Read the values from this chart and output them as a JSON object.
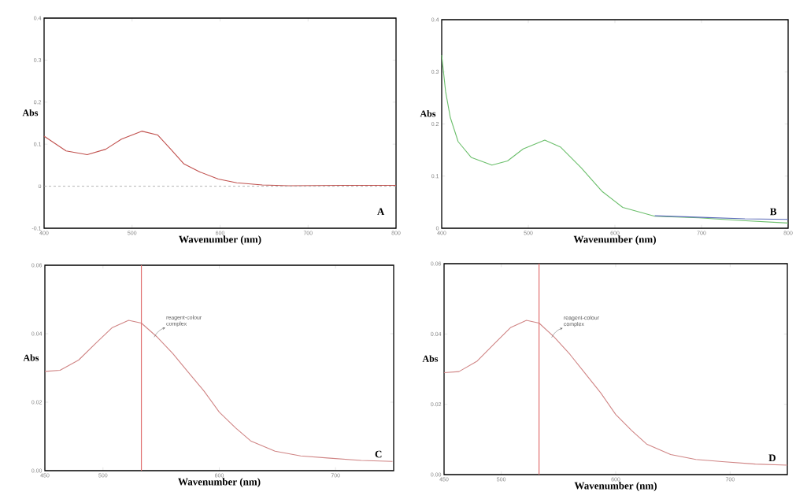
{
  "chart_data": [
    {
      "type": "line",
      "xlabel": "Wavenumber (nm)",
      "ylabel": "Abs",
      "xlim": [
        400,
        800
      ],
      "ylim": [
        -0.1,
        0.4
      ],
      "xticks": [
        400,
        500,
        600,
        700,
        800
      ],
      "yticks": [
        -0.1,
        0,
        0.1,
        0.2,
        0.3,
        0.4
      ],
      "x": [
        400,
        425,
        449,
        470,
        488,
        511,
        529,
        544,
        559,
        577,
        598,
        619,
        648,
        678,
        740,
        800
      ],
      "series": [
        {
          "color": "#c0504d",
          "values": [
            0.119,
            0.084,
            0.075,
            0.088,
            0.112,
            0.131,
            0.122,
            0.088,
            0.053,
            0.034,
            0.017,
            0.008,
            0.003,
            0.001,
            0.002,
            0.002
          ]
        }
      ],
      "ref_lines": [
        {
          "axis": "y",
          "value": 0,
          "color": "#a0a0a0",
          "line_style": "dashed"
        }
      ],
      "annotations": [
        "A"
      ]
    },
    {
      "type": "line",
      "xlabel": "Wavenumber (nm)",
      "ylabel": "Abs",
      "xlim": [
        400,
        800
      ],
      "ylim": [
        0,
        0.4
      ],
      "xticks": [
        400,
        500,
        600,
        700,
        800
      ],
      "yticks": [
        0,
        0.1,
        0.2,
        0.3,
        0.4
      ],
      "series": [
        {
          "color": "#6cbf6c",
          "x": [
            400,
            404.5,
            410,
            419,
            434,
            458,
            476,
            494,
            519,
            537,
            561,
            585,
            609,
            646,
            697,
            743,
            800
          ],
          "values": [
            0.332,
            0.262,
            0.212,
            0.166,
            0.136,
            0.121,
            0.129,
            0.152,
            0.169,
            0.156,
            0.116,
            0.071,
            0.04,
            0.023,
            0.02,
            0.015,
            0.01
          ]
        },
        {
          "color": "#5b6bb8",
          "x": [
            646,
            700,
            750,
            800
          ],
          "values": [
            0.024,
            0.021,
            0.018,
            0.017
          ]
        }
      ],
      "annotations": [
        "B"
      ]
    },
    {
      "type": "line",
      "xlabel": "Wavenumber (nm)",
      "ylabel": "Abs",
      "xlim": [
        450,
        750
      ],
      "ylim": [
        0,
        0.06
      ],
      "xticks": [
        450,
        500,
        600,
        700
      ],
      "yticks": [
        {
          "value": 0,
          "label": "0.00"
        },
        0.02,
        0.04,
        0.06
      ],
      "x": [
        450,
        463,
        479,
        495,
        508,
        522,
        533,
        546,
        560,
        573,
        587,
        600,
        614,
        627,
        648,
        670,
        693,
        722,
        749
      ],
      "series": [
        {
          "color": "#d08585",
          "values": [
            0.029,
            0.0293,
            0.0323,
            0.0376,
            0.0418,
            0.0439,
            0.0431,
            0.0392,
            0.0342,
            0.0289,
            0.0232,
            0.0171,
            0.0125,
            0.0087,
            0.0057,
            0.0043,
            0.0037,
            0.003,
            0.0027
          ]
        }
      ],
      "ref_lines": [
        {
          "axis": "x",
          "value": 533,
          "color": "#e07070",
          "line_style": "solid"
        }
      ],
      "annotations": [
        {
          "text": "reagent-colour complex",
          "x": 544,
          "y": 0.039
        },
        "C"
      ]
    },
    {
      "type": "line",
      "xlabel": "Wavenumber (nm)",
      "ylabel": "Abs",
      "xlim": [
        450,
        750
      ],
      "ylim": [
        0,
        0.06
      ],
      "xticks": [
        450,
        500,
        600,
        700
      ],
      "yticks": [
        {
          "value": 0,
          "label": "0.00"
        },
        0.02,
        0.04,
        0.06
      ],
      "x": [
        450,
        463,
        479,
        495,
        508,
        522,
        533,
        546,
        560,
        573,
        587,
        600,
        614,
        627,
        648,
        670,
        693,
        722,
        750
      ],
      "series": [
        {
          "color": "#d08585",
          "values": [
            0.029,
            0.0293,
            0.0323,
            0.0376,
            0.0418,
            0.0439,
            0.0431,
            0.0392,
            0.0342,
            0.0289,
            0.0232,
            0.0171,
            0.0125,
            0.0087,
            0.0057,
            0.0043,
            0.0037,
            0.003,
            0.0027
          ]
        }
      ],
      "ref_lines": [
        {
          "axis": "x",
          "value": 533,
          "color": "#e07070",
          "line_style": "solid"
        }
      ],
      "annotations": [
        {
          "text": "reagent-colour complex",
          "x": 544,
          "y": 0.039
        },
        "D"
      ]
    }
  ]
}
